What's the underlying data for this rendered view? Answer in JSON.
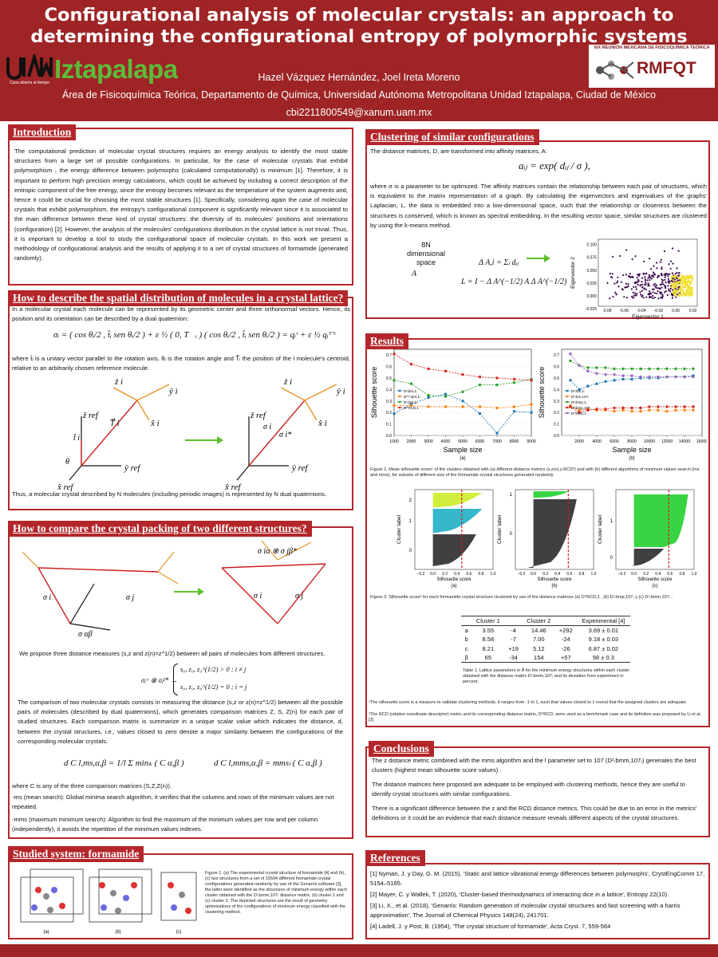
{
  "header": {
    "title": "Configurational analysis of molecular crystals: an approach to determining the configurational entropy of polymorphic systems",
    "authors": "Hazel Vázquez Hernández, Joel Ireta Moreno",
    "affiliation": "Área de Fisicoquímica Teórica, Departamento de Química, Universidad Autónoma Metropolitana Unidad Iztapalapa, Ciudad de México",
    "email": "cbi2211800549@xanum.uam.mx",
    "logo_left_text": "Iztapalapa",
    "logo_left_sub": "Casa abierta al tiempo",
    "logo_left_mark": "UAM",
    "logo_right_caption": "XIX REUNIÓN MEXICANA DE FISICOQUÍMICA TEÓRICA",
    "logo_right_text": "RMFQT"
  },
  "intro": {
    "heading": "Introduction",
    "text": "The computational prediction of molecular crystal structures requires an energy analysis to identify the most stable structures from a large set of possible configurations. In particular, for the case of molecular crystals that exhibit polymorphism , the energy difference between polymorphs (calculated computationally) is minimum [1]. Therefore, it is important to perform high precision energy calculations, which could be achieved by including a correct description of the entropic component of the free energy, since the entropy becomes relevant as the temperature of the system augments and, hence it could be crucial for choosing the most stable structures [1]. Specifically, considering again the case of molecular crystals that exhibit polymorphism, the entropy's configurational component is significantly relevant since it is associated to the main difference between these kind of crystal structures: the diversity of its molecules' positions and orientations (configuration) [2]. However, the analysis of the molecules' configurations distribution in the crystal lattice is not trivial. Thus, it is important to develop a tool to study the configurational space of molecular crystals. In this work we present a methodology of configurational analysis and the results of applying it to a set of crystal structures of formamide (generated randomly)."
  },
  "spatial": {
    "heading": "How to describe the spatial distribution of molecules in a crystal lattice?",
    "text1": "In a molecular crystal each molecule can be represented by its geometric center and three orthonormal vectors. Hence, its position and its orientation can be described by a dual quaternion:",
    "eq": "σᵢ = ( cos θᵢ/2 , t̂ᵢ sen θᵢ/2 ) + ε ½ ( 0, T⃗ᵢ ) ( cos θᵢ/2 , t̂ᵢ sen θᵢ/2 ) = qᵢʳ + ε ½ qᵢᵀ'ʳ",
    "text2": "where t̂ᵢ is a unitary vector parallel to the rotation axis, θᵢ is the rotation angle and T⃗ᵢ the position of the i molecule's centroid, relative to an arbitrarily chosen reference molecule.",
    "text3": "Thus, a molecular crystal described by N molecules (including periodic images) is represented by N dual quaternions.",
    "labels": {
      "zi": "ẑ i",
      "yi": "ŷ i",
      "xi": "x̂ i",
      "zref": "ẑ ref",
      "yref": "ŷ ref",
      "xref": "x̂ ref",
      "ti": "t̂ i",
      "theta": "θ",
      "T": "T⃗ i",
      "sigma": "σ i",
      "sigmastar": "σ i*"
    }
  },
  "compare": {
    "heading": "How to compare the crystal packing of two different structures?",
    "labels": {
      "sab": "σ αβ",
      "si": "σ i",
      "sj": "σ j",
      "sisj": "σ iα ⊗ σ jβ*"
    },
    "text1": "We propose three distance measures (s,z and z(n)=z^1/2) between all pairs of molecules from different structures.",
    "eq_pair": "σᵢᵅ ⊗ σⱼᵝ* →",
    "eq_case1": "s₀, z₀, z₀^(1/2) > 0 ;   i ≠ j",
    "eq_case2": "s₀, z₀, z₀^(1/2) = 0 ;   i = j",
    "text2": "The comparison of two molecular crystals consists in measuring the distance (s,z or z(n)=z^1/2) between all the possible pairs of molecules (described by dual quaternions), which generates comparison matrices  Z, S, Z(n) for each pair of studied structures. Each comparison matrix is summarize in a unique scalar value which indicates the distance, d, between the crystal structures, i.e., values closed to zero denote a major similarity between the configurations of the corresponding molecular crystals.",
    "eq1": "d C l,ms,α,β = 1/l Σ minₖ ( C α,β )",
    "eq2": "d C l,mms,α,β = mmsₗ ( C α,β )",
    "text3": "where C is any of the three comparison matrices (S,Z,Z(n)).",
    "text4": "-ms (mean search): Global minima search algorithm, it verifies that the columns and rows of the minimum values are not repeated.",
    "text5": "-mms (maximum minimum search): Algorithm to find the maximum of the minimum values per row and per column (independently), it avoids the repetition of the minimum values indexes."
  },
  "studied": {
    "heading": "Studied system: formamide",
    "caption": "Figure 1. (a) The experimental crystal structure of formamide [4] and (b), (c) two structures from a set of 15594 different formamide crystal configurations generated randomly by use of the Genarris software [3], the latter were identified as the structures of minimum energy within each cluster obtained with the Dᶻ₍bmm,107₎ distance matrix, (b) cluster 1 and (c) cluster 2. The depicted structures are the result of geometry optimizations of the configurations of minimum energy classified with the clustering method.",
    "panels": [
      "(a)",
      "(b)",
      "(c)"
    ]
  },
  "clustering": {
    "heading": "Clustering of similar configurations",
    "text1": "The distance matrices, D, are transformed into affinity matrices, A:",
    "eq": "aᵢⱼ = exp( dᵢⱼ / σ ),",
    "text2": "where σ is a parameter to be optimized. The affinity matrices contain the relationship between each pair of structures, which is equivalent to the matrix representation of a graph. By calculating the eigenvectors and eigenvalues of the graphs' Laplacian, L, the data is embedded into a low-dimensional space, such that the relationship or closeness between the structures is conserved, which is known as spectral embedding. In the resulting vector space, similar structures are clustered by using the k-means method.",
    "space_label": "8N dimensional space",
    "space_symbol": "A",
    "eq_delta": "Δ A,i = Σⱼ dᵢⱼ",
    "eq_L": "L = I − Δ A^(−1/2) A Δ A^(−1/2)"
  },
  "results": {
    "heading": "Results",
    "fig2_caption": "Figure 2. Mean silhouette score¹ of the clusters obtained with (a) different distance metrics (s,z(n),z,RCD²) and with (b) different algorithms of minimum values search (ms and mms), for subsets of different size of the formamide crystal structures generated randomly.",
    "fig3_caption": "Figure 3. Silhouette score¹ for each formamide crystal structure clustered by use of the distance matrices (a) D^RCD,1 , (b) Dᶻ₍bmp,107₎ y (c) Dᶻ₍bmm,107₎ .",
    "table": {
      "headers": [
        "",
        "Cluster 1",
        "",
        "Cluster 2",
        "",
        "Experimental [4]"
      ],
      "rows": [
        [
          "a",
          "3.55",
          "-4",
          "14.46",
          "+292",
          "3.69 ± 0.01"
        ],
        [
          "b",
          "8.58",
          "-7",
          "7.00",
          "-24",
          "9.18 ± 0.03"
        ],
        [
          "c",
          "8.21",
          "+19",
          "5.12",
          "-26",
          "6.87 ± 0.02"
        ],
        [
          "β",
          "65",
          "-34",
          "154",
          "+57",
          "98 ± 0.3"
        ]
      ],
      "caption": "Table 1. Lattice parameters in Å for the minimum energy structures within each cluster obtained with the distance matrix Dᶻ₍bmm,107₎ and its deviation from experiment in percent."
    },
    "footnote1": "¹The silhouette score is a measure to validate clustering methods, it ranges from -1 to 1, such that values closed to 1 reveal  that the assigned clusters are adequate.",
    "footnote2": "²The RCD (relative coordinate descriptor) metric and its corresponding distance matrix, D^RCD, were used as a benchmark case and its definition was proposed by Li et al. [3]"
  },
  "conclusions": {
    "heading": "Conclusions",
    "p1": "The z distance metric combined with the mms algorithm and the l parameter set to 107 (Dᶻ₍bmm,107₎) generates the best clusters (highest mean silhouette score values) .",
    "p2": "The distance matrices here proposed are adequate to be employed with clustering methods, hence they are useful to identify crystal structures with similar configurations.",
    "p3": "There is a significant difference between the z and the RCD distance metrics. This could be due to an error in the metrics' definitions or it could be an evidence that each distance measure reveals different aspects of the crystal structures."
  },
  "references": {
    "heading": "References",
    "items": [
      "[1] Nyman, J. y Day, G. M. (2015), 'Static and lattice vibrational energy differences between polymorphs', CrystEngComm 17, 5154–5165.",
      "[2] Mayer, C. y Wallek, T. (2020), 'Cluster-based thermodynamics of interacting dice in a lattice', Entropy 22(10).",
      "[3] Li, X., et al. (2018), 'Genarris: Random generation of molecular crystal structures and fast screening with a harris approximation', The Journal of Chemical Physics 148(24), 241701.",
      "[4] Ladell, J. y Post, B. (1954), 'The crystal structure of formamide', Acta Cryst. 7, 559-564"
    ]
  },
  "chart_data": [
    {
      "type": "line",
      "panel": "(a)",
      "xlabel": "Sample size",
      "ylabel": "Silhouette score",
      "x": [
        1000,
        2000,
        3000,
        4000,
        5000,
        6000,
        7000,
        8000,
        9000
      ],
      "xticks": [
        "1000",
        "2000",
        "3000",
        "4000",
        "5000",
        "6000",
        "7000",
        "8000",
        "9000"
      ],
      "ylim": [
        0,
        0.75
      ],
      "yticks": [
        "0.0",
        "0.1",
        "0.2",
        "0.3",
        "0.4",
        "0.5",
        "0.6",
        "0.7"
      ],
      "series": [
        {
          "name": "Dˢ₍bm,1₎",
          "color": "#1f77b4",
          "values": [
            0.19,
            0.27,
            0.33,
            0.36,
            0.3,
            0.19,
            0.02,
            0.21,
            0.2
          ]
        },
        {
          "name": "Dᶻ⁽ⁿ⁾₍bm,1₎",
          "color": "#ff7f0e",
          "values": [
            0.26,
            0.26,
            0.25,
            0.25,
            0.25,
            0.25,
            0.24,
            0.25,
            0.27
          ]
        },
        {
          "name": "Dᶻ₍bm,1₎",
          "color": "#2ca02c",
          "values": [
            0.48,
            0.45,
            0.35,
            0.34,
            0.38,
            0.44,
            0.44,
            0.46,
            0.49
          ]
        },
        {
          "name": "D^RCD,1",
          "color": "#d62728",
          "values": [
            0.71,
            0.62,
            0.58,
            0.56,
            0.53,
            0.51,
            0.5,
            0.49,
            0.48
          ]
        }
      ]
    },
    {
      "type": "line",
      "panel": "(b)",
      "xlabel": "Sample size",
      "ylabel": "Silhouette score",
      "x": [
        1000,
        2000,
        3000,
        4000,
        5000,
        6000,
        7000,
        8000,
        9000,
        10000,
        11000,
        12000,
        13000,
        14000,
        15000
      ],
      "xticks": [
        "2000",
        "4000",
        "6000",
        "8000",
        "10000",
        "12000",
        "14000",
        "16000"
      ],
      "ylim": [
        0,
        0.75
      ],
      "yticks": [
        "0.0",
        "0.1",
        "0.2",
        "0.3",
        "0.4",
        "0.5",
        "0.6",
        "0.7"
      ],
      "series": [
        {
          "name": "Dᶻ₍bm,1₎",
          "color": "#1f77b4",
          "values": [
            0.48,
            0.4,
            0.43,
            0.45,
            0.47,
            0.48,
            0.49,
            0.49,
            0.5,
            0.5,
            0.5,
            0.51,
            0.51,
            0.51,
            0.52
          ]
        },
        {
          "name": "Dᶻ₍bm,107₎",
          "color": "#ff7f0e",
          "values": [
            0.26,
            0.22,
            0.23,
            0.22,
            0.22,
            0.21,
            0.22,
            0.21,
            0.21,
            0.22,
            0.22,
            0.21,
            0.22,
            0.22,
            0.22
          ]
        },
        {
          "name": "Dᶻ₍bmp,1₎",
          "color": "#2ca02c",
          "values": [
            0.65,
            0.61,
            0.59,
            0.59,
            0.59,
            0.58,
            0.58,
            0.58,
            0.58,
            0.58,
            0.58,
            0.58,
            0.58,
            0.58,
            0.58
          ]
        },
        {
          "name": "Dᶻ₍bmp,107₎",
          "color": "#d62728",
          "values": [
            0.25,
            0.2,
            0.22,
            0.23,
            0.23,
            0.24,
            0.24,
            0.24,
            0.24,
            0.25,
            0.25,
            0.25,
            0.25,
            0.25,
            0.25
          ]
        },
        {
          "name": "D^RCD,1",
          "color": "#9467bd",
          "values": [
            0.71,
            0.61,
            0.56,
            0.54,
            0.53,
            0.53,
            0.52,
            0.52,
            0.51,
            0.51,
            0.51,
            0.51,
            0.51,
            0.51,
            0.51
          ]
        }
      ]
    },
    {
      "type": "scatter",
      "xlabel": "Eigenvector 1",
      "ylabel": "Eigenvector 2",
      "xlim": [
        -0.09,
        0.025
      ],
      "ylim": [
        -0.02,
        0.11
      ],
      "xticks": [
        "-0.08",
        "-0.06",
        "-0.04",
        "-0.02",
        "0.00",
        "0.02"
      ],
      "yticks": [
        "0.100",
        "0.075",
        "0.050",
        "0.025",
        "0.000",
        "-0.025"
      ],
      "series": [
        {
          "name": "",
          "color": "#3b0a4f"
        },
        {
          "name": "",
          "color": "#f0e030"
        }
      ]
    },
    {
      "type": "bar",
      "panel": "(a)",
      "xlabel": "Silhouette score",
      "ylabel": "Cluster label",
      "xticks": [
        "−0.2",
        "0.0",
        "0.2",
        "0.4",
        "0.6",
        "0.8",
        "1.0"
      ],
      "clusters": [
        "0",
        "1",
        "2"
      ],
      "mean": 0.48
    },
    {
      "type": "bar",
      "panel": "(b)",
      "xlabel": "Silhouette score",
      "ylabel": "Cluster label",
      "xticks": [
        "−0.2",
        "0.0",
        "0.2",
        "0.4",
        "0.6",
        "0.8",
        "1.0"
      ],
      "clusters": [
        "0",
        "1"
      ],
      "mean": 0.58
    },
    {
      "type": "bar",
      "panel": "(c)",
      "xlabel": "Silhouette score",
      "ylabel": "Cluster label",
      "xticks": [
        "−0.2",
        "0.0",
        "0.2",
        "0.4",
        "0.6",
        "0.8",
        "1.0"
      ],
      "clusters": [
        "0",
        "1"
      ],
      "mean": 0.58
    }
  ]
}
